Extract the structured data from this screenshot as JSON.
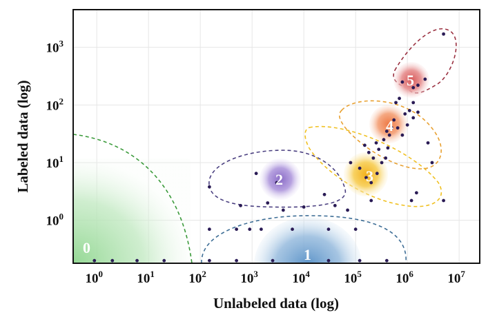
{
  "chart_data": {
    "type": "scatter",
    "title": "",
    "xlabel": "Unlabeled data (log)",
    "ylabel": "Labeled data (log)",
    "x_scale": "log",
    "y_scale": "log",
    "xlim": [
      0.35,
      25000000
    ],
    "ylim": [
      0.18,
      4500
    ],
    "grid": true,
    "x_ticks": [
      {
        "value": 1,
        "base": "10",
        "exp": "0"
      },
      {
        "value": 10,
        "base": "10",
        "exp": "1"
      },
      {
        "value": 100,
        "base": "10",
        "exp": "2"
      },
      {
        "value": 1000,
        "base": "10",
        "exp": "3"
      },
      {
        "value": 10000,
        "base": "10",
        "exp": "4"
      },
      {
        "value": 100000,
        "base": "10",
        "exp": "5"
      },
      {
        "value": 1000000,
        "base": "10",
        "exp": "6"
      },
      {
        "value": 10000000,
        "base": "10",
        "exp": "7"
      }
    ],
    "y_ticks": [
      {
        "value": 1,
        "base": "10",
        "exp": "0"
      },
      {
        "value": 10,
        "base": "10",
        "exp": "1"
      },
      {
        "value": 100,
        "base": "10",
        "exp": "2"
      },
      {
        "value": 1000,
        "base": "10",
        "exp": "3"
      }
    ],
    "regions": [
      {
        "label": "0",
        "color": "#7fce7f",
        "boundary_color": "#3a9a3a",
        "center": [
          0.5,
          0.28
        ]
      },
      {
        "label": "1",
        "color": "#5b93c8",
        "boundary_color": "#3e6e96",
        "center": [
          12000,
          0.25
        ]
      },
      {
        "label": "2",
        "color": "#9b7fd0",
        "boundary_color": "#4a3f80",
        "center": [
          3000,
          4.5
        ]
      },
      {
        "label": "3",
        "color": "#f5c030",
        "boundary_color": "#f0c020",
        "center": [
          200000,
          6
        ]
      },
      {
        "label": "4",
        "color": "#f08a5a",
        "boundary_color": "#e8a030",
        "center": [
          600000,
          40
        ]
      },
      {
        "label": "5",
        "color": "#e06a6a",
        "boundary_color": "#9a3040",
        "center": [
          1500000,
          250
        ]
      }
    ],
    "series": [
      {
        "color": "#2a1b55",
        "points": [
          [
            0.9,
            0.2
          ],
          [
            2,
            0.2
          ],
          [
            6,
            0.2
          ],
          [
            20,
            0.2
          ],
          [
            150,
            0.2
          ],
          [
            500,
            0.2
          ],
          [
            2500,
            0.2
          ],
          [
            30000,
            0.2
          ],
          [
            120000,
            0.2
          ],
          [
            400000,
            0.2
          ],
          [
            150,
            0.7
          ],
          [
            500,
            0.7
          ],
          [
            1500,
            0.7
          ],
          [
            6000,
            0.7
          ],
          [
            30000,
            0.7
          ],
          [
            100000,
            0.7
          ],
          [
            150,
            3.8
          ],
          [
            600,
            1.8
          ],
          [
            900,
            0.7
          ],
          [
            2000,
            2
          ],
          [
            4000,
            1.5
          ],
          [
            10000,
            1.7
          ],
          [
            25000,
            2.8
          ],
          [
            40000,
            1.8
          ],
          [
            70000,
            1.5
          ],
          [
            1200,
            6.5
          ],
          [
            3000,
            4.5
          ],
          [
            80000,
            10
          ],
          [
            120000,
            8
          ],
          [
            160000,
            5.5
          ],
          [
            200000,
            4.5
          ],
          [
            260000,
            6.5
          ],
          [
            320000,
            10
          ],
          [
            180000,
            15
          ],
          [
            250000,
            22
          ],
          [
            150000,
            20
          ],
          [
            380000,
            12
          ],
          [
            450000,
            30
          ],
          [
            220000,
            12
          ],
          [
            1500000,
            3
          ],
          [
            1200000,
            2.2
          ],
          [
            200000,
            2.2
          ],
          [
            350000,
            25
          ],
          [
            420000,
            18
          ],
          [
            500000,
            40
          ],
          [
            650000,
            40
          ],
          [
            800000,
            30
          ],
          [
            550000,
            55
          ],
          [
            1000000,
            45
          ],
          [
            1300000,
            60
          ],
          [
            400000,
            35
          ],
          [
            2500000,
            22
          ],
          [
            280000,
            17
          ],
          [
            600000,
            110
          ],
          [
            900000,
            70
          ],
          [
            1300000,
            110
          ],
          [
            1600000,
            75
          ],
          [
            800000,
            250
          ],
          [
            1600000,
            220
          ],
          [
            2200000,
            280
          ],
          [
            1300000,
            200
          ],
          [
            5000000,
            1700
          ],
          [
            1100000,
            80
          ],
          [
            700000,
            130
          ],
          [
            3000000,
            10
          ],
          [
            5000000,
            2.2
          ]
        ]
      }
    ]
  }
}
